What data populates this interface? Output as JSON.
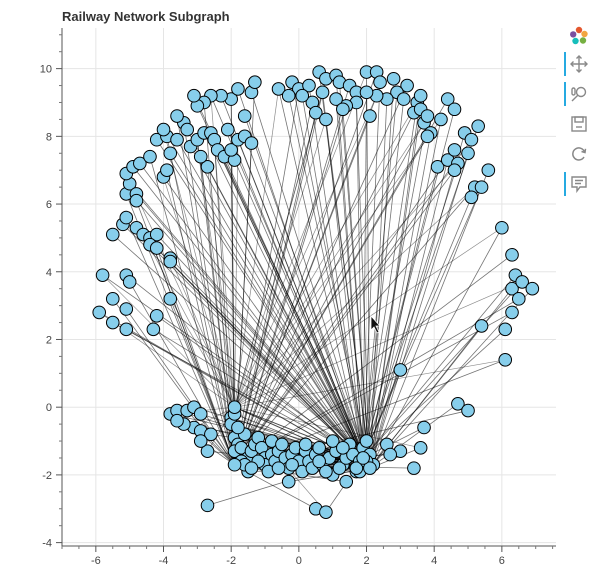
{
  "chart_data": {
    "type": "scatter",
    "subtype": "network-graph",
    "title": "Railway Network Subgraph",
    "xlabel": "",
    "ylabel": "",
    "xlim": [
      -7,
      7.6
    ],
    "ylim": [
      -4.1,
      11.2
    ],
    "x_ticks": [
      -6,
      -4,
      -2,
      0,
      2,
      4,
      6
    ],
    "y_ticks": [
      -4,
      -2,
      0,
      2,
      4,
      6,
      8,
      10
    ],
    "grid": true,
    "node_fill": "#87ceeb",
    "node_stroke": "#000000",
    "edge_color": "#000000",
    "hubs": [
      {
        "x": 2.1,
        "y": -1.8
      },
      {
        "x": -1.9,
        "y": -1.7
      },
      {
        "x": -1.9,
        "y": 0.0
      },
      {
        "x": 1.9,
        "y": -1.5
      }
    ],
    "outer_nodes": [
      [
        -5.9,
        2.8
      ],
      [
        -5.5,
        3.2
      ],
      [
        -5.5,
        2.5
      ],
      [
        -5.1,
        2.3
      ],
      [
        -5.1,
        2.9
      ],
      [
        -5.8,
        3.9
      ],
      [
        -5.1,
        3.9
      ],
      [
        -5.0,
        3.7
      ],
      [
        -4.3,
        2.3
      ],
      [
        -4.2,
        2.7
      ],
      [
        -3.8,
        3.2
      ],
      [
        -5.5,
        5.1
      ],
      [
        -5.2,
        5.4
      ],
      [
        -5.1,
        5.6
      ],
      [
        -4.8,
        5.3
      ],
      [
        -4.6,
        5.1
      ],
      [
        -4.4,
        5.0
      ],
      [
        -4.2,
        5.1
      ],
      [
        -4.4,
        4.8
      ],
      [
        -4.2,
        4.7
      ],
      [
        -3.8,
        4.4
      ],
      [
        -3.8,
        4.3
      ],
      [
        -5.1,
        6.3
      ],
      [
        -5.0,
        6.6
      ],
      [
        -4.8,
        6.3
      ],
      [
        -5.1,
        6.9
      ],
      [
        -4.9,
        7.1
      ],
      [
        -4.7,
        7.2
      ],
      [
        -4.4,
        7.4
      ],
      [
        -4.8,
        6.1
      ],
      [
        -4.0,
        6.8
      ],
      [
        -3.9,
        7.0
      ],
      [
        -3.8,
        7.5
      ],
      [
        -4.2,
        7.9
      ],
      [
        -3.9,
        8.0
      ],
      [
        -4.0,
        8.2
      ],
      [
        -3.6,
        7.9
      ],
      [
        -3.4,
        8.4
      ],
      [
        -3.3,
        8.2
      ],
      [
        -3.2,
        7.7
      ],
      [
        -3.0,
        7.9
      ],
      [
        -2.8,
        8.1
      ],
      [
        -2.6,
        8.1
      ],
      [
        -2.5,
        7.9
      ],
      [
        -2.4,
        7.6
      ],
      [
        -2.7,
        7.1
      ],
      [
        -2.9,
        7.4
      ],
      [
        -2.2,
        7.4
      ],
      [
        -1.9,
        7.3
      ],
      [
        -2.0,
        7.6
      ],
      [
        -1.8,
        7.9
      ],
      [
        -1.6,
        8.0
      ],
      [
        -1.4,
        7.8
      ],
      [
        -2.1,
        8.2
      ],
      [
        -1.6,
        8.6
      ],
      [
        -2.0,
        9.1
      ],
      [
        -1.8,
        9.4
      ],
      [
        -1.4,
        9.3
      ],
      [
        -1.3,
        9.6
      ],
      [
        -2.3,
        9.2
      ],
      [
        -2.6,
        9.2
      ],
      [
        -2.8,
        9.0
      ],
      [
        -3.0,
        8.9
      ],
      [
        -3.1,
        9.2
      ],
      [
        -3.6,
        8.6
      ],
      [
        -0.6,
        9.4
      ],
      [
        -0.2,
        9.6
      ],
      [
        0.0,
        9.4
      ],
      [
        0.3,
        9.5
      ],
      [
        0.6,
        9.9
      ],
      [
        0.8,
        9.7
      ],
      [
        1.1,
        9.8
      ],
      [
        1.2,
        9.6
      ],
      [
        1.5,
        9.5
      ],
      [
        1.7,
        9.3
      ],
      [
        2.0,
        9.9
      ],
      [
        2.3,
        9.9
      ],
      [
        2.4,
        9.6
      ],
      [
        2.8,
        9.7
      ],
      [
        3.2,
        9.5
      ],
      [
        3.5,
        9.0
      ],
      [
        3.6,
        9.2
      ],
      [
        3.4,
        8.7
      ],
      [
        2.9,
        9.3
      ],
      [
        2.6,
        9.1
      ],
      [
        2.3,
        9.2
      ],
      [
        2.0,
        9.3
      ],
      [
        1.7,
        9.0
      ],
      [
        1.4,
        8.9
      ],
      [
        1.1,
        9.1
      ],
      [
        0.7,
        9.3
      ],
      [
        0.4,
        9.0
      ],
      [
        0.1,
        9.2
      ],
      [
        -0.3,
        9.2
      ],
      [
        0.5,
        8.7
      ],
      [
        0.8,
        8.5
      ],
      [
        1.3,
        8.8
      ],
      [
        2.1,
        8.6
      ],
      [
        3.1,
        9.1
      ],
      [
        3.6,
        8.8
      ],
      [
        3.7,
        8.4
      ],
      [
        3.8,
        8.6
      ],
      [
        3.9,
        8.1
      ],
      [
        4.4,
        9.1
      ],
      [
        4.6,
        8.8
      ],
      [
        4.2,
        8.5
      ],
      [
        3.8,
        8.0
      ],
      [
        4.1,
        7.1
      ],
      [
        4.4,
        7.3
      ],
      [
        4.6,
        7.6
      ],
      [
        4.7,
        7.2
      ],
      [
        4.9,
        8.1
      ],
      [
        5.1,
        7.9
      ],
      [
        5.3,
        8.3
      ],
      [
        5.0,
        7.5
      ],
      [
        5.2,
        6.5
      ],
      [
        5.4,
        6.5
      ],
      [
        5.6,
        7.0
      ],
      [
        4.6,
        7.0
      ],
      [
        5.1,
        6.2
      ],
      [
        6.0,
        5.3
      ],
      [
        6.3,
        4.5
      ],
      [
        6.4,
        3.9
      ],
      [
        6.3,
        3.5
      ],
      [
        6.5,
        3.2
      ],
      [
        6.6,
        3.7
      ],
      [
        6.9,
        3.5
      ],
      [
        6.3,
        2.8
      ],
      [
        6.1,
        2.3
      ],
      [
        5.4,
        2.4
      ],
      [
        6.1,
        1.4
      ],
      [
        3.0,
        1.1
      ],
      [
        4.7,
        0.1
      ],
      [
        5.0,
        -0.1
      ],
      [
        3.7,
        -0.6
      ],
      [
        3.6,
        -1.2
      ],
      [
        3.4,
        -1.8
      ],
      [
        3.0,
        -1.3
      ],
      [
        2.6,
        -1.1
      ],
      [
        2.7,
        -1.4
      ],
      [
        -3.8,
        -0.2
      ],
      [
        -3.6,
        -0.1
      ],
      [
        -3.3,
        -0.1
      ],
      [
        -3.1,
        0.0
      ],
      [
        -2.9,
        -0.2
      ],
      [
        -3.1,
        -0.6
      ],
      [
        -3.4,
        -0.5
      ],
      [
        -3.6,
        -0.4
      ],
      [
        -2.9,
        -0.7
      ],
      [
        -2.6,
        -0.8
      ],
      [
        -2.7,
        -1.3
      ],
      [
        -2.9,
        -1.0
      ],
      [
        -2.7,
        -2.9
      ],
      [
        -0.3,
        -2.2
      ],
      [
        0.5,
        -3.0
      ],
      [
        0.8,
        -3.1
      ],
      [
        1.0,
        -2.0
      ],
      [
        1.4,
        -2.2
      ],
      [
        1.7,
        -1.9
      ],
      [
        1.3,
        -1.7
      ]
    ],
    "cluster_nodes": [
      [
        -2.0,
        -0.3
      ],
      [
        -2.0,
        -0.5
      ],
      [
        -1.9,
        -0.2
      ],
      [
        -1.9,
        -0.9
      ],
      [
        -1.8,
        -1.1
      ],
      [
        -1.9,
        -1.3
      ],
      [
        -1.7,
        -1.2
      ],
      [
        -1.6,
        -0.8
      ],
      [
        -1.5,
        -1.5
      ],
      [
        -1.4,
        -1.3
      ],
      [
        -1.3,
        -1.1
      ],
      [
        -1.2,
        -0.9
      ],
      [
        -1.1,
        -1.2
      ],
      [
        -1.0,
        -1.5
      ],
      [
        -1.0,
        -1.7
      ],
      [
        -0.8,
        -1.4
      ],
      [
        -0.8,
        -1.0
      ],
      [
        -0.7,
        -1.6
      ],
      [
        -0.6,
        -1.3
      ],
      [
        -0.5,
        -1.1
      ],
      [
        -0.4,
        -1.5
      ],
      [
        -0.3,
        -1.8
      ],
      [
        -0.2,
        -1.4
      ],
      [
        -0.1,
        -1.2
      ],
      [
        0.0,
        -1.6
      ],
      [
        0.1,
        -1.9
      ],
      [
        0.2,
        -1.3
      ],
      [
        0.3,
        -1.6
      ],
      [
        0.4,
        -1.8
      ],
      [
        0.5,
        -1.4
      ],
      [
        0.6,
        -1.2
      ],
      [
        0.7,
        -1.7
      ],
      [
        0.9,
        -1.5
      ],
      [
        1.1,
        -1.3
      ],
      [
        1.2,
        -1.8
      ],
      [
        1.4,
        -1.5
      ],
      [
        1.5,
        -1.1
      ],
      [
        1.6,
        -1.4
      ],
      [
        1.8,
        -1.6
      ],
      [
        1.9,
        -1.2
      ],
      [
        2.0,
        -1.0
      ],
      [
        2.1,
        -1.4
      ],
      [
        2.2,
        -1.7
      ],
      [
        1.8,
        -1.9
      ],
      [
        -1.5,
        -1.9
      ],
      [
        -1.2,
        -1.6
      ],
      [
        -0.9,
        -1.9
      ],
      [
        -0.6,
        -1.8
      ],
      [
        0.8,
        -1.9
      ],
      [
        0.2,
        -1.1
      ],
      [
        -1.7,
        -1.6
      ],
      [
        -1.6,
        -1.7
      ],
      [
        -1.4,
        -1.8
      ],
      [
        -0.2,
        -1.7
      ],
      [
        0.6,
        -1.6
      ],
      [
        1.0,
        -1.0
      ],
      [
        1.3,
        -1.2
      ],
      [
        1.7,
        -1.8
      ],
      [
        2.0,
        -1.6
      ],
      [
        -1.8,
        -0.6
      ]
    ]
  }
}
